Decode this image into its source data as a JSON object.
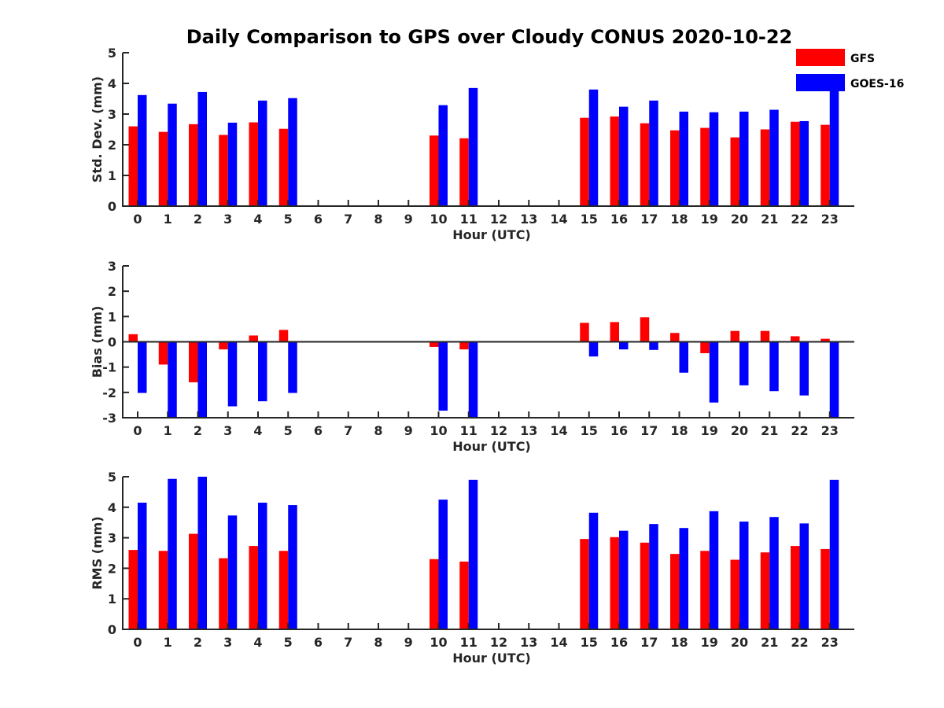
{
  "figure": {
    "title": "Daily Comparison to GPS over Cloudy CONUS 2020-10-22"
  },
  "legend": {
    "placement": "top-right",
    "entries": [
      {
        "name": "GFS",
        "color": "#ff0000"
      },
      {
        "name": "GOES-16",
        "color": "#0000ff"
      }
    ]
  },
  "chart_data": [
    {
      "type": "bar",
      "ylabel": "Std. Dev. (mm)",
      "xlabel": "Hour (UTC)",
      "ylim": [
        0,
        5
      ],
      "yticks": [
        0,
        1,
        2,
        3,
        4,
        5
      ],
      "categories": [
        "0",
        "1",
        "2",
        "3",
        "4",
        "5",
        "6",
        "7",
        "8",
        "9",
        "10",
        "11",
        "12",
        "13",
        "14",
        "15",
        "16",
        "17",
        "18",
        "19",
        "20",
        "21",
        "22",
        "23"
      ],
      "series": [
        {
          "name": "GFS",
          "color": "#ff0000",
          "values": [
            2.6,
            2.42,
            2.67,
            2.32,
            2.73,
            2.52,
            null,
            null,
            null,
            null,
            2.3,
            2.21,
            null,
            null,
            null,
            2.88,
            2.92,
            2.7,
            2.47,
            2.55,
            2.24,
            2.5,
            2.75,
            2.65
          ]
        },
        {
          "name": "GOES-16",
          "color": "#0000ff",
          "values": [
            3.62,
            3.34,
            3.72,
            2.72,
            3.44,
            3.52,
            null,
            null,
            null,
            null,
            3.29,
            3.85,
            null,
            null,
            null,
            3.8,
            3.24,
            3.44,
            3.08,
            3.06,
            3.08,
            3.14,
            2.77,
            3.9
          ]
        }
      ]
    },
    {
      "type": "bar",
      "ylabel": "Bias (mm)",
      "xlabel": "Hour (UTC)",
      "ylim": [
        -3,
        3
      ],
      "yticks": [
        -3,
        -2,
        -1,
        0,
        1,
        2,
        3
      ],
      "categories": [
        "0",
        "1",
        "2",
        "3",
        "4",
        "5",
        "6",
        "7",
        "8",
        "9",
        "10",
        "11",
        "12",
        "13",
        "14",
        "15",
        "16",
        "17",
        "18",
        "19",
        "20",
        "21",
        "22",
        "23"
      ],
      "series": [
        {
          "name": "GFS",
          "color": "#ff0000",
          "values": [
            0.3,
            -0.9,
            -1.6,
            -0.3,
            0.25,
            0.47,
            null,
            null,
            null,
            null,
            -0.2,
            -0.3,
            null,
            null,
            null,
            0.75,
            0.78,
            0.97,
            0.35,
            -0.45,
            0.43,
            0.43,
            0.22,
            0.12
          ]
        },
        {
          "name": "GOES-16",
          "color": "#0000ff",
          "values": [
            -2.02,
            -3.0,
            -3.0,
            -2.55,
            -2.35,
            -2.02,
            null,
            null,
            null,
            null,
            -2.72,
            -3.0,
            null,
            null,
            null,
            -0.58,
            -0.3,
            -0.32,
            -1.22,
            -2.4,
            -1.72,
            -1.95,
            -2.12,
            -3.0
          ]
        }
      ]
    },
    {
      "type": "bar",
      "ylabel": "RMS (mm)",
      "xlabel": "Hour (UTC)",
      "ylim": [
        0,
        5
      ],
      "yticks": [
        0,
        1,
        2,
        3,
        4,
        5
      ],
      "categories": [
        "0",
        "1",
        "2",
        "3",
        "4",
        "5",
        "6",
        "7",
        "8",
        "9",
        "10",
        "11",
        "12",
        "13",
        "14",
        "15",
        "16",
        "17",
        "18",
        "19",
        "20",
        "21",
        "22",
        "23"
      ],
      "series": [
        {
          "name": "GFS",
          "color": "#ff0000",
          "values": [
            2.6,
            2.57,
            3.13,
            2.33,
            2.73,
            2.57,
            null,
            null,
            null,
            null,
            2.3,
            2.22,
            null,
            null,
            null,
            2.96,
            3.02,
            2.84,
            2.47,
            2.57,
            2.28,
            2.52,
            2.73,
            2.63
          ]
        },
        {
          "name": "GOES-16",
          "color": "#0000ff",
          "values": [
            4.15,
            4.93,
            5.0,
            3.73,
            4.15,
            4.07,
            null,
            null,
            null,
            null,
            4.25,
            4.9,
            null,
            null,
            null,
            3.82,
            3.23,
            3.45,
            3.32,
            3.87,
            3.53,
            3.68,
            3.47,
            4.9
          ]
        }
      ]
    }
  ]
}
